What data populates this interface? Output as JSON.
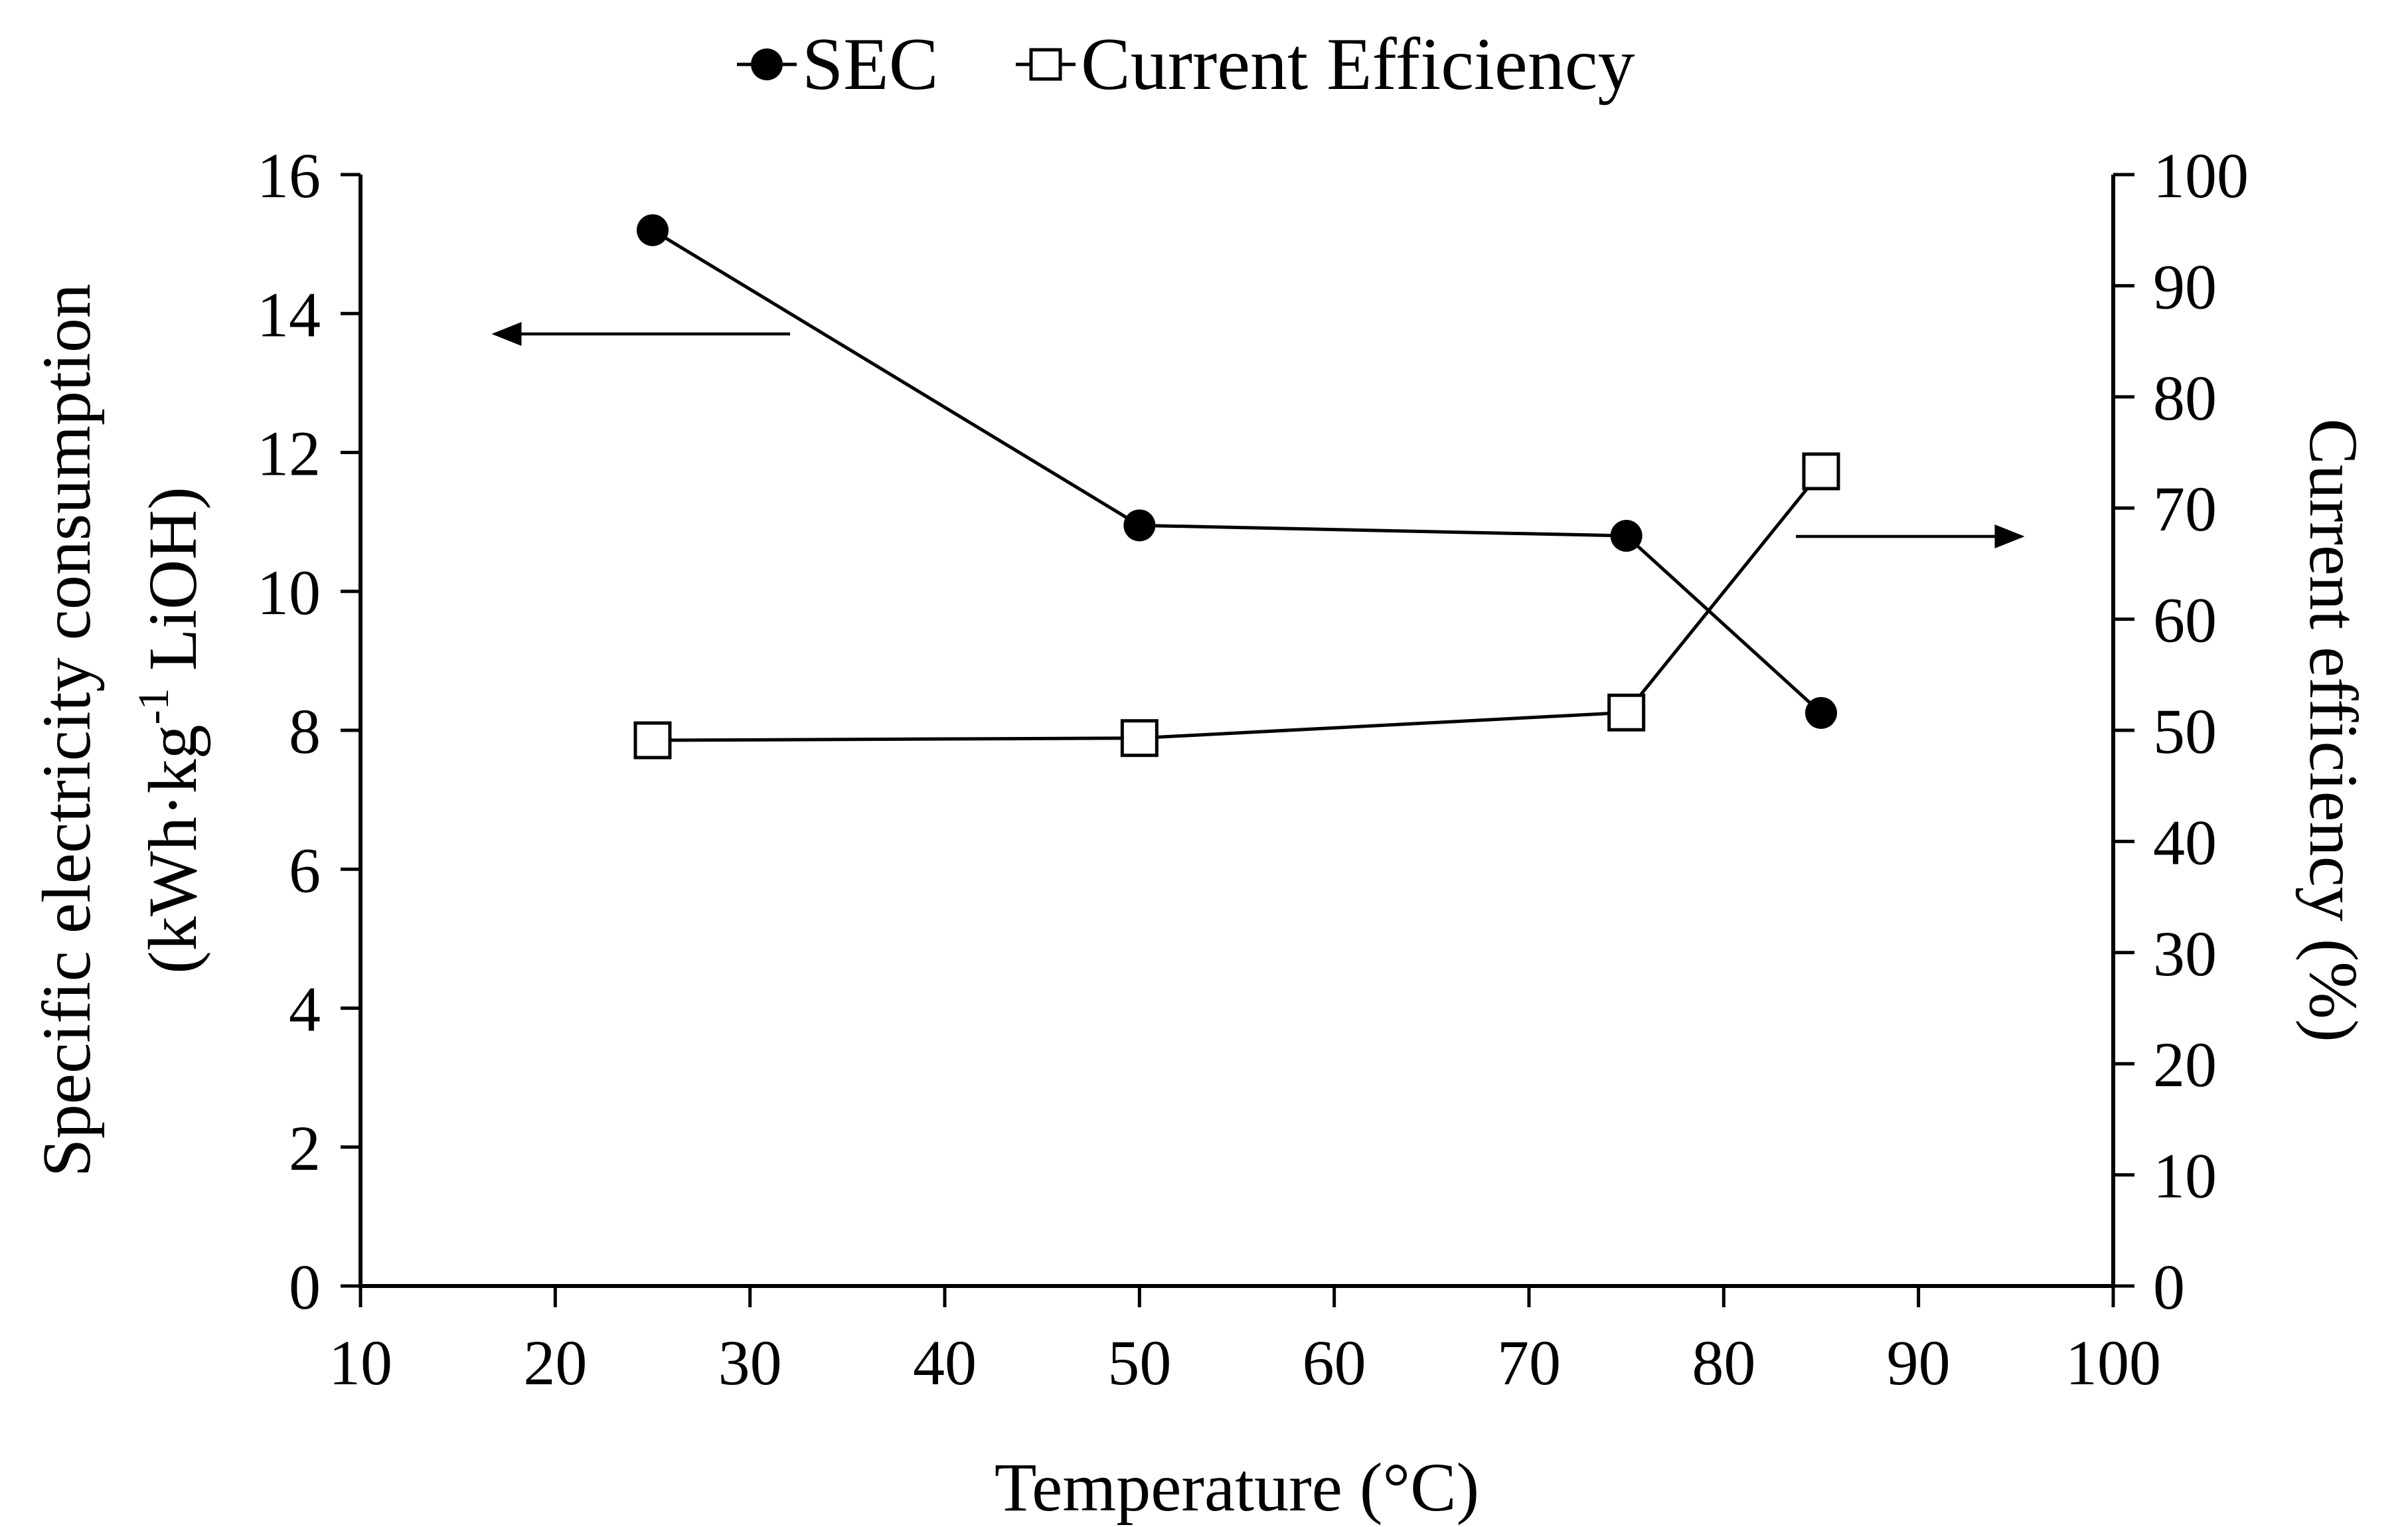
{
  "chart_data": {
    "type": "line",
    "title": "",
    "xlabel": "Temperature (°C)",
    "ylabel_line1": "Specific electricity consumption",
    "ylabel_line2_pre": "(kWh·kg",
    "ylabel_line2_sup": "-1",
    "ylabel_line2_post": " LiOH)",
    "y2label": "Current efficiency (%)",
    "xlim": [
      10,
      100
    ],
    "ylim": [
      0,
      16
    ],
    "y2lim": [
      0,
      100
    ],
    "x_ticks": [
      "10",
      "20",
      "30",
      "40",
      "50",
      "60",
      "70",
      "80",
      "90",
      "100"
    ],
    "y_ticks": [
      "0",
      "2",
      "4",
      "6",
      "8",
      "10",
      "12",
      "14",
      "16"
    ],
    "y2_ticks": [
      "0",
      "10",
      "20",
      "30",
      "40",
      "50",
      "60",
      "70",
      "80",
      "90",
      "100"
    ],
    "legend_position": "top-center",
    "series": [
      {
        "name": "SEC",
        "axis": "left",
        "marker": "filled-circle",
        "x": [
          25,
          50,
          75,
          85
        ],
        "values": [
          15.2,
          10.95,
          10.8,
          8.25
        ]
      },
      {
        "name": "Current Efficiency",
        "axis": "right",
        "marker": "open-square",
        "x": [
          25,
          50,
          75,
          85
        ],
        "values": [
          49.1,
          49.3,
          51.6,
          73.3
        ]
      }
    ],
    "annotations": [
      {
        "type": "arrow",
        "direction": "left",
        "points_to": "left-axis",
        "series": "SEC"
      },
      {
        "type": "arrow",
        "direction": "right",
        "points_to": "right-axis",
        "series": "Current Efficiency"
      }
    ]
  }
}
